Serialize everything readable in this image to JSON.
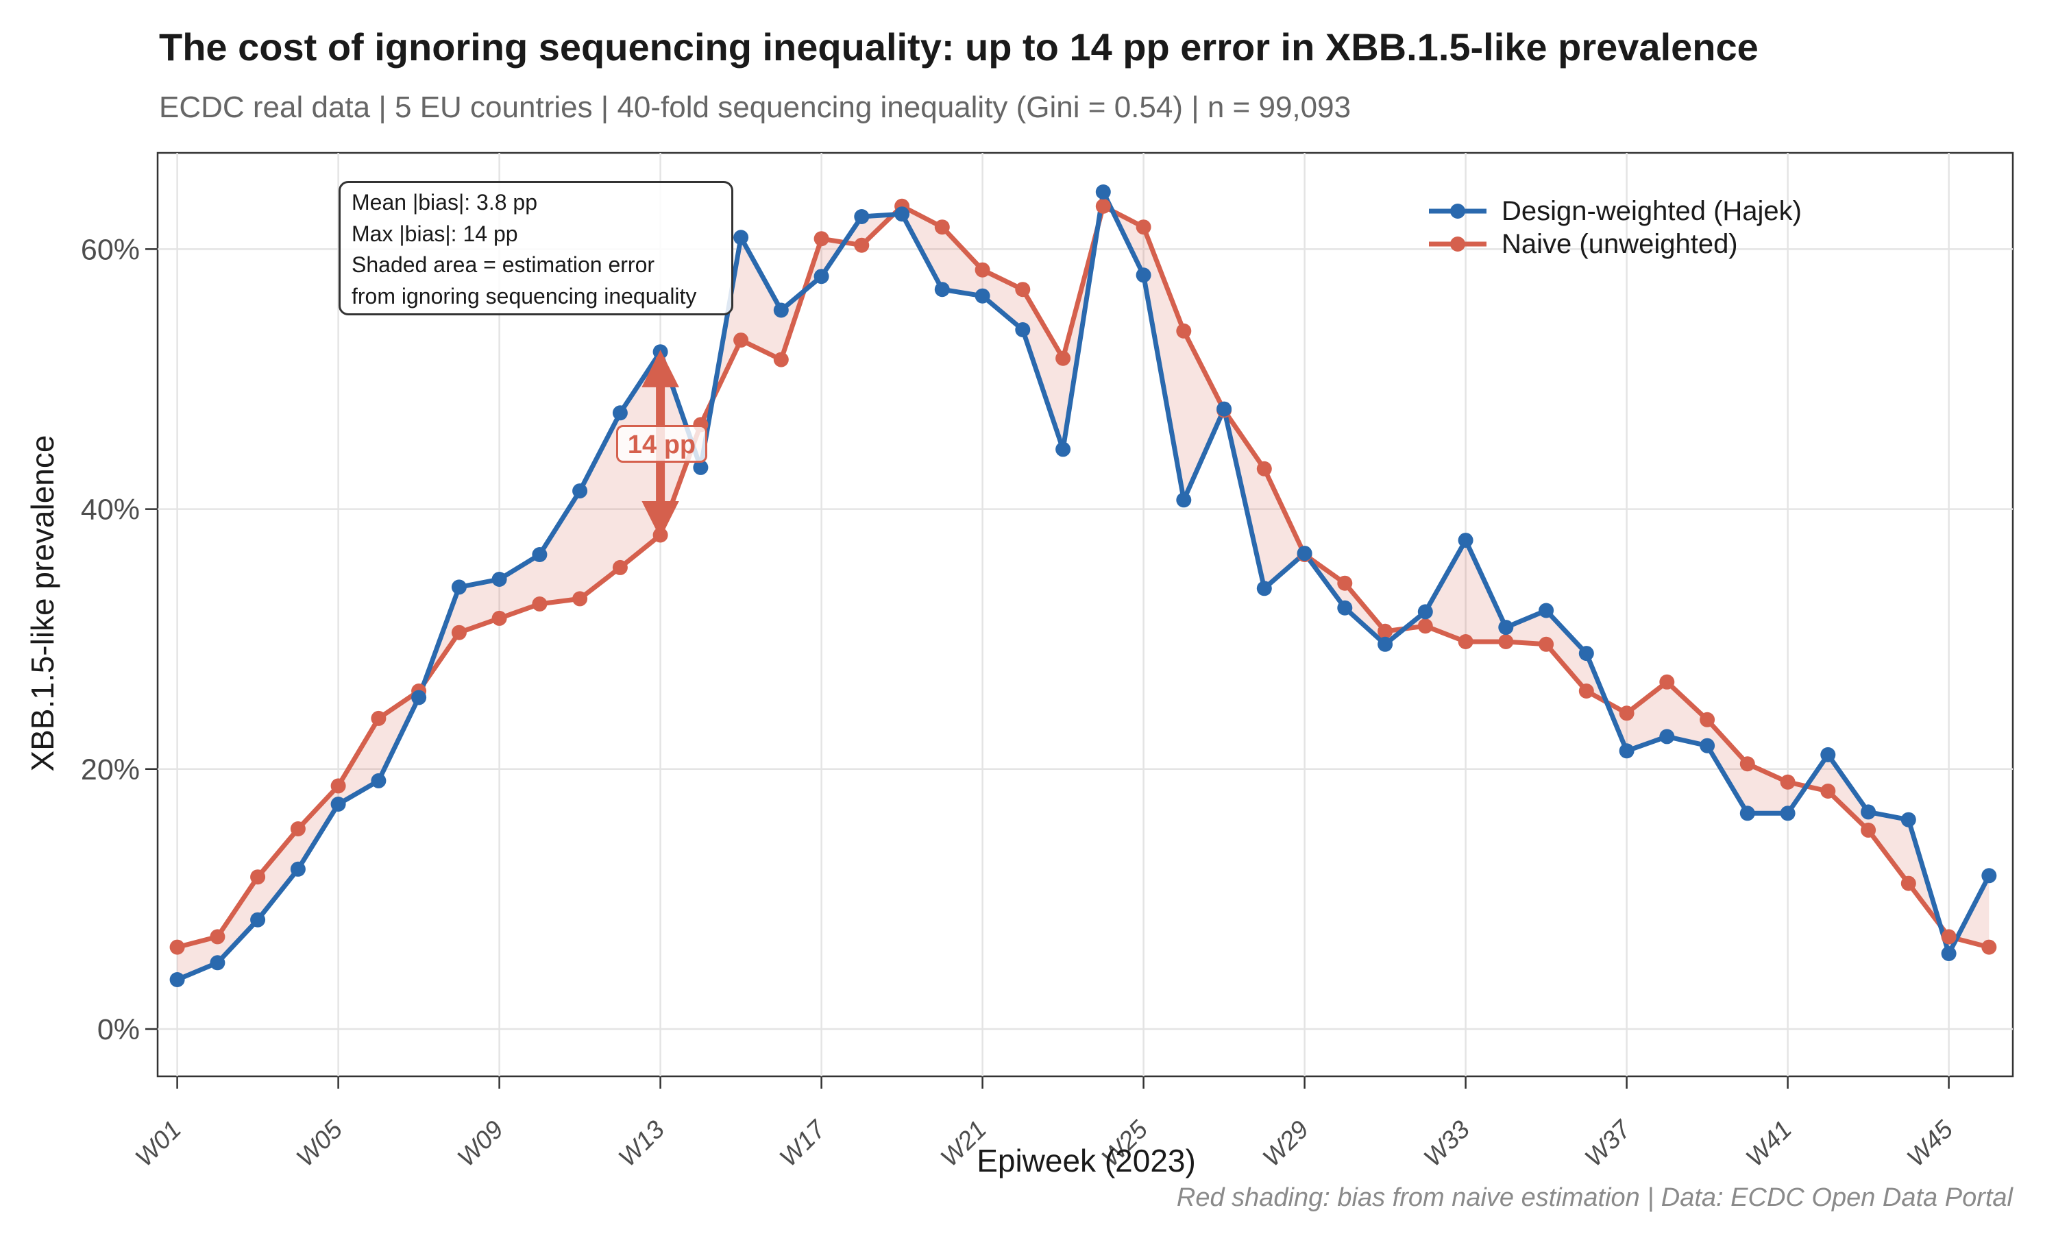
{
  "header": {
    "title": "The cost of ignoring sequencing inequality: up to 14 pp error in XBB.1.5-like prevalence",
    "subtitle": "ECDC real data | 5 EU countries | 40-fold sequencing inequality (Gini = 0.54) | n = 99,093"
  },
  "chart_data": {
    "type": "line",
    "xlabel": "Epiweek (2023)",
    "ylabel": "XBB.1.5-like prevalence",
    "x": [
      "W01",
      "W02",
      "W03",
      "W04",
      "W05",
      "W06",
      "W07",
      "W08",
      "W09",
      "W10",
      "W11",
      "W12",
      "W13",
      "W14",
      "W15",
      "W16",
      "W17",
      "W18",
      "W19",
      "W20",
      "W21",
      "W22",
      "W23",
      "W24",
      "W25",
      "W26",
      "W27",
      "W28",
      "W29",
      "W30",
      "W31",
      "W32",
      "W33",
      "W34",
      "W35",
      "W36",
      "W37",
      "W38",
      "W39",
      "W40",
      "W41",
      "W42",
      "W43",
      "W44",
      "W45",
      "W46"
    ],
    "x_tick_labels": [
      "W01",
      "W05",
      "W09",
      "W13",
      "W17",
      "W21",
      "W25",
      "W29",
      "W33",
      "W37",
      "W41",
      "W45"
    ],
    "y_tick_labels": [
      "0%",
      "20%",
      "40%",
      "60%"
    ],
    "y_tick_values": [
      0,
      20,
      40,
      60
    ],
    "ylim": [
      -3.6,
      67.4
    ],
    "grid": "major",
    "legend_position": "top-right-inside",
    "series": [
      {
        "name": "Design-weighted (Hajek)",
        "color": "#2a69ae",
        "values": [
          3.8,
          5.1,
          8.4,
          12.3,
          17.3,
          19.1,
          25.5,
          34.0,
          34.6,
          36.5,
          41.4,
          47.4,
          52.1,
          43.2,
          60.9,
          55.3,
          57.9,
          62.5,
          62.7,
          56.9,
          56.4,
          53.8,
          44.6,
          64.4,
          58.0,
          40.7,
          47.7,
          33.9,
          36.6,
          32.4,
          29.6,
          32.1,
          37.6,
          30.9,
          32.2,
          28.9,
          21.4,
          22.5,
          21.8,
          16.6,
          16.6,
          21.1,
          16.7,
          16.1,
          5.8,
          11.8
        ]
      },
      {
        "name": "Naive (unweighted)",
        "color": "#d5604d",
        "values": [
          6.3,
          7.1,
          11.7,
          15.4,
          18.7,
          23.9,
          26.0,
          30.5,
          31.6,
          32.7,
          33.1,
          35.5,
          38.0,
          46.5,
          53.0,
          51.5,
          60.8,
          60.3,
          63.3,
          61.7,
          58.4,
          56.9,
          51.6,
          63.3,
          61.7,
          53.7,
          47.6,
          43.1,
          36.5,
          34.3,
          30.6,
          31.0,
          29.8,
          29.8,
          29.6,
          26.0,
          24.3,
          26.7,
          23.8,
          20.4,
          19.0,
          18.3,
          15.3,
          11.2,
          7.1,
          6.3
        ]
      }
    ],
    "band": {
      "meaning": "estimation error between design-weighted and naive series",
      "color": "#d5604d",
      "opacity": 0.17
    }
  },
  "annotation_box": {
    "lines": [
      "Mean |bias|: 3.8 pp",
      "Max |bias|: 14 pp",
      "Shaded area = estimation error",
      "from ignoring sequencing inequality"
    ]
  },
  "bias_marker": {
    "week": 13,
    "from_value": 38.0,
    "to_value": 52.1,
    "label": "14 pp",
    "color": "#d5604d"
  },
  "caption": "Red shading: bias from naive estimation | Data: ECDC Open Data Portal"
}
